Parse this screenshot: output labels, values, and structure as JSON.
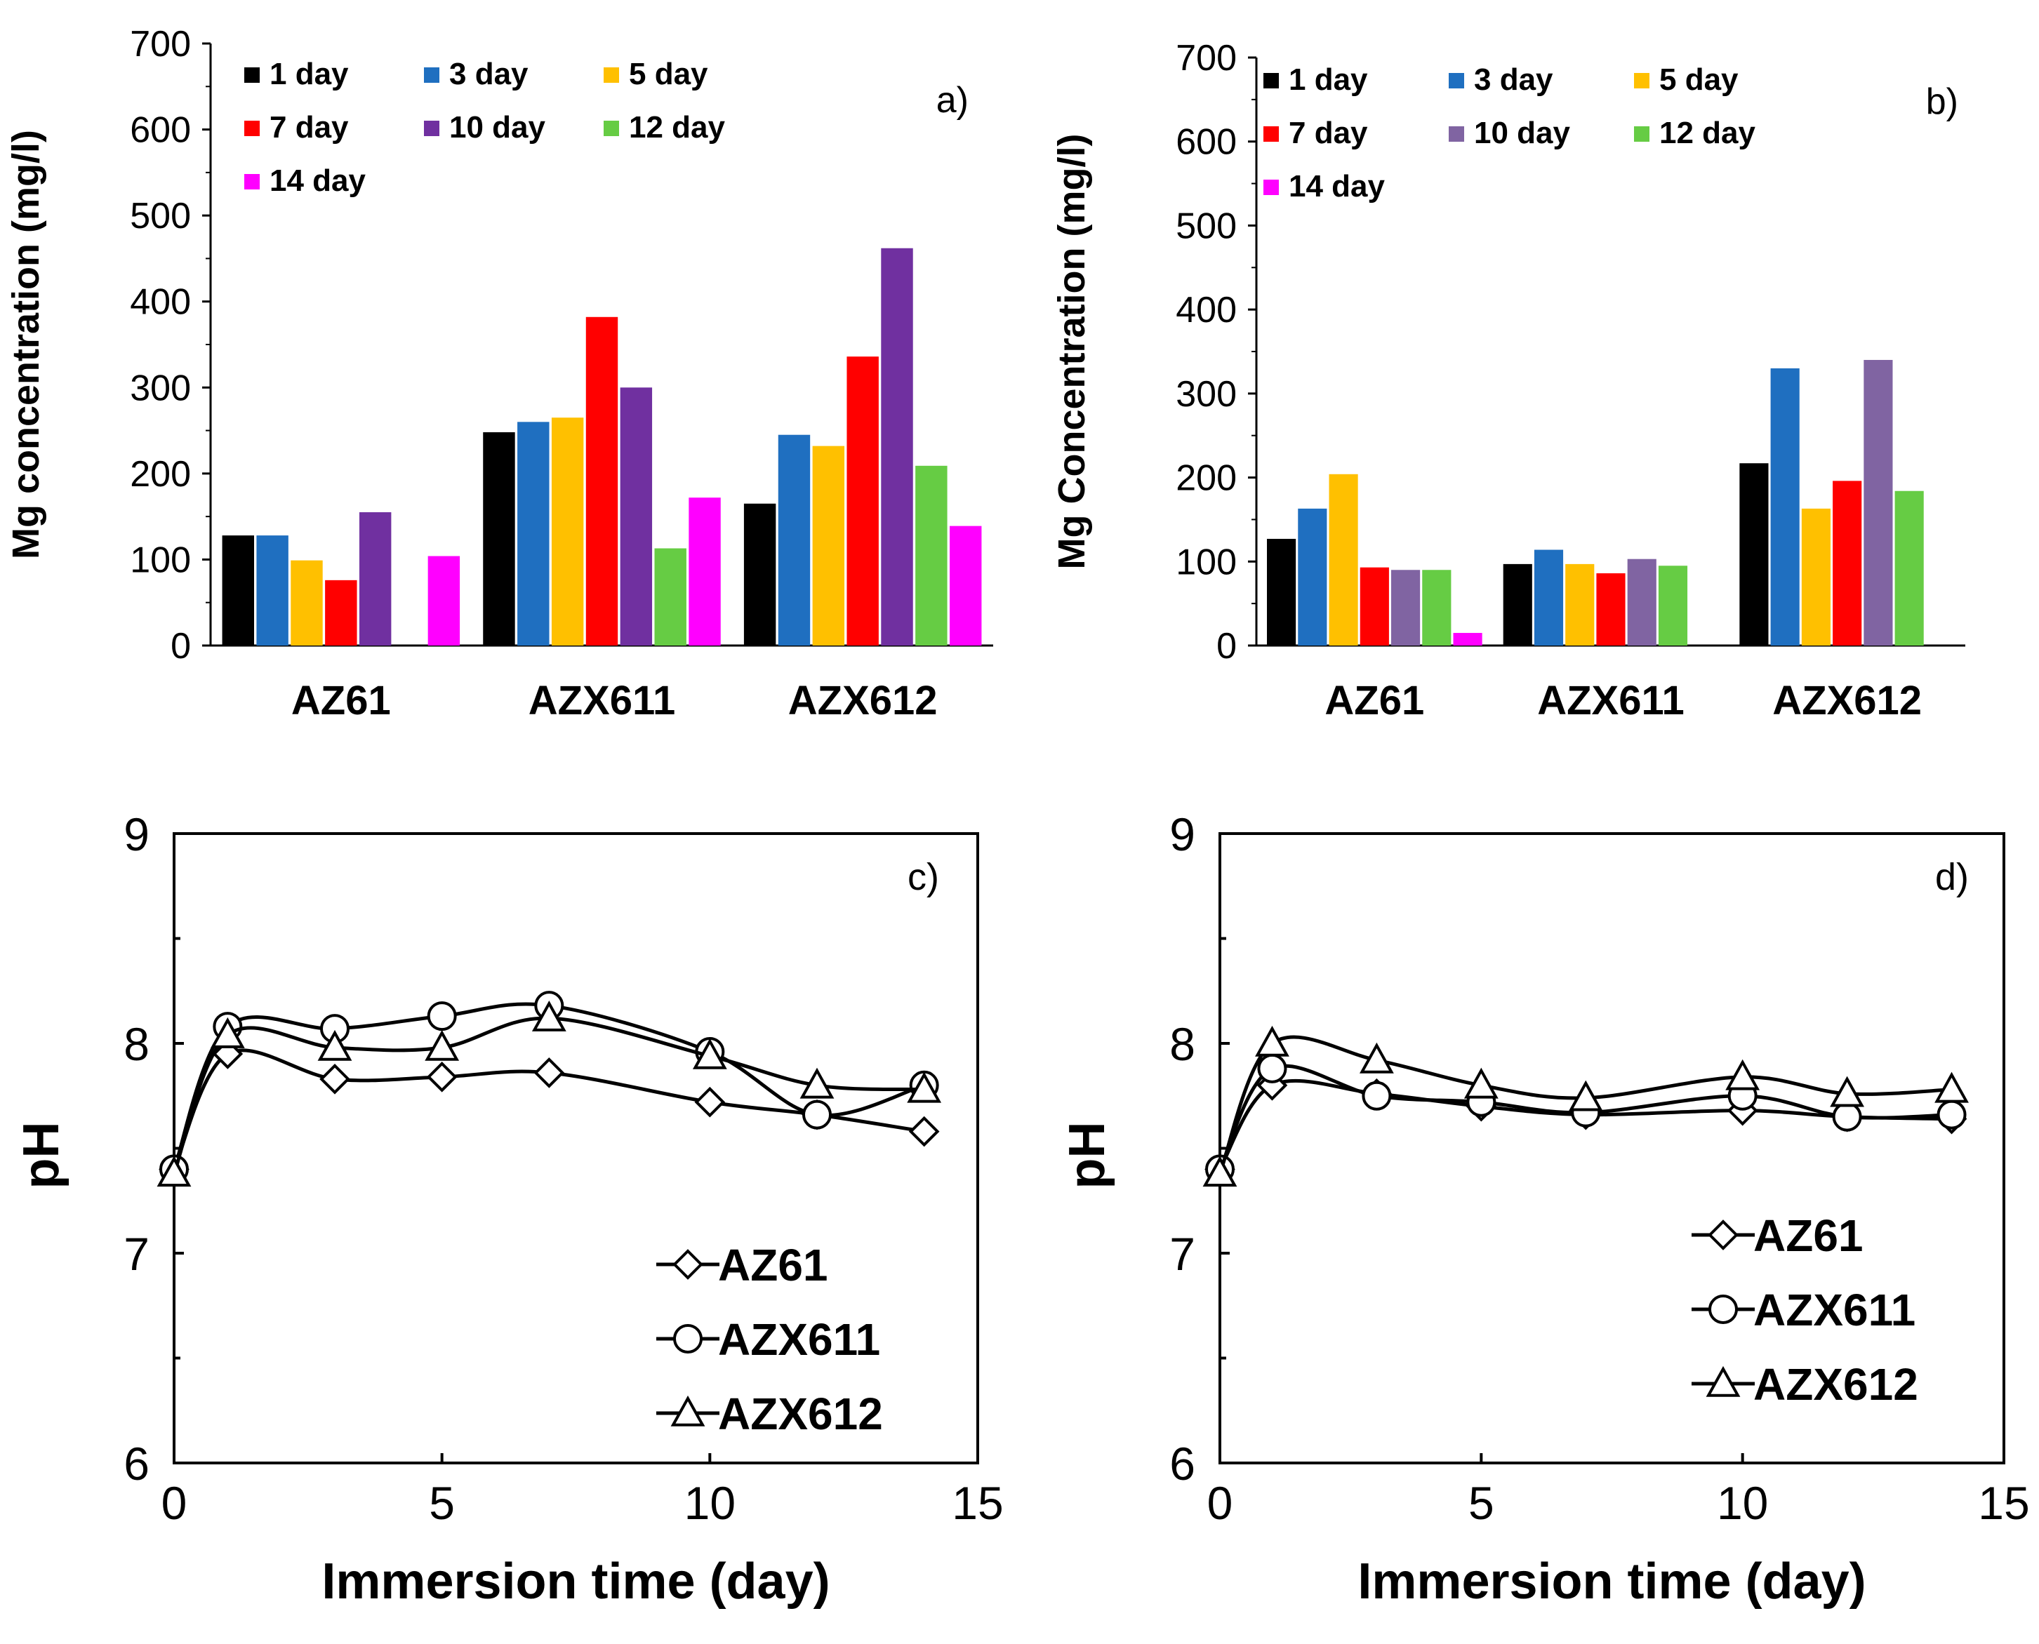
{
  "chart_data": [
    {
      "panel": "a)",
      "type": "bar",
      "ylabel": "Mg concentration (mg/l)",
      "xlabel": "",
      "ylim": [
        0,
        700
      ],
      "yticks": [
        "0",
        "100",
        "200",
        "300",
        "400",
        "500",
        "600",
        "700"
      ],
      "categories": [
        "AZ61",
        "AZX611",
        "AZX612"
      ],
      "series": [
        {
          "name": "1 day",
          "color": "#000000",
          "values": [
            128,
            248,
            165
          ]
        },
        {
          "name": "3 day",
          "color": "#1f6fc0",
          "values": [
            128,
            260,
            245
          ]
        },
        {
          "name": "5 day",
          "color": "#ffc000",
          "values": [
            99,
            265,
            232
          ]
        },
        {
          "name": "7 day",
          "color": "#ff0000",
          "values": [
            76,
            382,
            336
          ]
        },
        {
          "name": "10 day",
          "color": "#7030a0",
          "values": [
            155,
            300,
            462
          ]
        },
        {
          "name": "12 day",
          "color": "#66cc44",
          "values": [
            0,
            113,
            209
          ]
        },
        {
          "name": "14 day",
          "color": "#ff00ff",
          "values": [
            104,
            172,
            139
          ]
        }
      ]
    },
    {
      "panel": "b)",
      "type": "bar",
      "ylabel": "Mg Concentration (mg/l)",
      "xlabel": "",
      "ylim": [
        0,
        700
      ],
      "yticks": [
        "0",
        "100",
        "200",
        "300",
        "400",
        "500",
        "600",
        "700"
      ],
      "categories": [
        "AZ61",
        "AZX611",
        "AZX612"
      ],
      "series": [
        {
          "name": "1 day",
          "color": "#000000",
          "values": [
            127,
            97,
            217
          ]
        },
        {
          "name": "3 day",
          "color": "#1f6fc0",
          "values": [
            163,
            114,
            330
          ]
        },
        {
          "name": "5 day",
          "color": "#ffc000",
          "values": [
            204,
            97,
            163
          ]
        },
        {
          "name": "7 day",
          "color": "#ff0000",
          "values": [
            93,
            86,
            196
          ]
        },
        {
          "name": "10 day",
          "color": "#8064a2",
          "values": [
            90,
            103,
            340
          ]
        },
        {
          "name": "12 day",
          "color": "#66cc44",
          "values": [
            90,
            95,
            184
          ]
        },
        {
          "name": "14 day",
          "color": "#ff00ff",
          "values": [
            15,
            0,
            0
          ]
        }
      ]
    },
    {
      "panel": "c)",
      "type": "line",
      "xlabel": "Immersion time (day)",
      "ylabel": "pH",
      "xlim": [
        0,
        15
      ],
      "ylim": [
        6,
        9
      ],
      "xticks": [
        "0",
        "5",
        "10",
        "15"
      ],
      "yticks": [
        "6",
        "7",
        "8",
        "9"
      ],
      "x": [
        0,
        1,
        3,
        5,
        7,
        10,
        12,
        14
      ],
      "series": [
        {
          "name": "AZ61",
          "marker": "diamond",
          "values": [
            7.4,
            7.95,
            7.83,
            7.84,
            7.86,
            7.72,
            7.66,
            7.58
          ]
        },
        {
          "name": "AZX611",
          "marker": "circle",
          "values": [
            7.4,
            8.08,
            8.07,
            8.13,
            8.18,
            7.96,
            7.66,
            7.8
          ]
        },
        {
          "name": "AZX612",
          "marker": "triangle",
          "values": [
            7.38,
            8.04,
            7.98,
            7.98,
            8.12,
            7.94,
            7.8,
            7.78
          ]
        }
      ]
    },
    {
      "panel": "d)",
      "type": "line",
      "xlabel": "Immersion time (day)",
      "ylabel": "pH",
      "xlim": [
        0,
        15
      ],
      "ylim": [
        6,
        9
      ],
      "xticks": [
        "0",
        "5",
        "10",
        "15"
      ],
      "yticks": [
        "6",
        "7",
        "8",
        "9"
      ],
      "x": [
        0,
        1,
        3,
        5,
        7,
        10,
        12,
        14
      ],
      "series": [
        {
          "name": "AZ61",
          "marker": "diamond",
          "values": [
            7.4,
            7.8,
            7.76,
            7.7,
            7.66,
            7.68,
            7.65,
            7.64
          ]
        },
        {
          "name": "AZX611",
          "marker": "circle",
          "values": [
            7.4,
            7.88,
            7.75,
            7.72,
            7.67,
            7.75,
            7.65,
            7.66
          ]
        },
        {
          "name": "AZX612",
          "marker": "triangle",
          "values": [
            7.38,
            8.0,
            7.92,
            7.8,
            7.74,
            7.84,
            7.76,
            7.78
          ]
        }
      ]
    }
  ]
}
